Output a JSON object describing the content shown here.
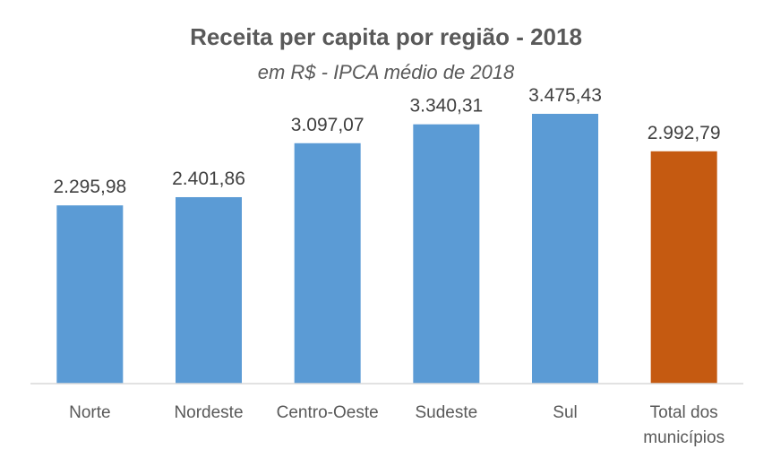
{
  "chart_data": {
    "type": "bar",
    "title": "Receita per capita por região - 2018",
    "subtitle": "em R$ - IPCA médio de 2018",
    "categories": [
      "Norte",
      "Nordeste",
      "Centro-Oeste",
      "Sudeste",
      "Sul",
      "Total dos municípios"
    ],
    "values": [
      2295.98,
      2401.86,
      3097.07,
      3340.31,
      3475.43,
      2992.79
    ],
    "data_labels": [
      "2.295,98",
      "2.401,86",
      "3.097,07",
      "3.340,31",
      "3.475,43",
      "2.992,79"
    ],
    "bar_colors": [
      "#5B9BD5",
      "#5B9BD5",
      "#5B9BD5",
      "#5B9BD5",
      "#5B9BD5",
      "#C55A11"
    ],
    "ylim": [
      0,
      4000
    ],
    "grid": false,
    "legend": "none",
    "xlabel": "",
    "ylabel": ""
  },
  "colors": {
    "bar": "#5B9BD5",
    "total_bar": "#C55A11",
    "text": "#595959",
    "axis": "#D9D9D9"
  }
}
